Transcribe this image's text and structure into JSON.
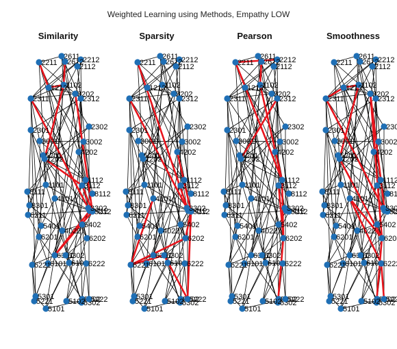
{
  "title": "Weighted Learning using Methods, Empathy LOW",
  "colors": {
    "node": "#1f6fb5",
    "edge": "#000000",
    "highlight": "#e8141c"
  },
  "panels": [
    {
      "title": "Similarity",
      "highlight": [
        [
          "2612",
          "1102"
        ],
        [
          "1102",
          "1202"
        ],
        [
          "1202",
          "3112"
        ],
        [
          "3112",
          "5212"
        ],
        [
          "1102",
          "1212"
        ],
        [
          "1212",
          "2211"
        ],
        [
          "2311",
          "2412"
        ],
        [
          "5212",
          "6301"
        ],
        [
          "6301",
          "2412"
        ],
        [
          "5212",
          "3202"
        ]
      ]
    },
    {
      "title": "Sparsity",
      "highlight": [
        [
          "2211",
          "2412"
        ],
        [
          "2412",
          "2311"
        ],
        [
          "4202",
          "5212"
        ],
        [
          "5212",
          "6202"
        ],
        [
          "6202",
          "6221"
        ],
        [
          "6221",
          "6302"
        ],
        [
          "6302",
          "5222"
        ],
        [
          "5222",
          "5212"
        ],
        [
          "6221",
          "4101"
        ]
      ]
    },
    {
      "title": "Pearson",
      "highlight": [
        [
          "2612",
          "1102"
        ],
        [
          "1102",
          "1112"
        ],
        [
          "2212",
          "2211"
        ],
        [
          "1112",
          "2211"
        ],
        [
          "1202",
          "2312"
        ],
        [
          "1112",
          "6202"
        ],
        [
          "6202",
          "5302"
        ],
        [
          "5302",
          "5202"
        ],
        [
          "3112",
          "6202"
        ]
      ]
    },
    {
      "title": "Smoothness",
      "highlight": [
        [
          "1102",
          "1212"
        ],
        [
          "1212",
          "2311"
        ],
        [
          "2311",
          "2412"
        ],
        [
          "2412",
          "3202"
        ],
        [
          "3202",
          "6202"
        ],
        [
          "1102",
          "1202"
        ],
        [
          "1202",
          "6202"
        ],
        [
          "6202",
          "4101"
        ],
        [
          "4101",
          "6222"
        ],
        [
          "6222",
          "5222"
        ],
        [
          "6202",
          "5302"
        ]
      ]
    }
  ],
  "nodes": [
    {
      "id": "2611",
      "label": "2611"
    },
    {
      "id": "2212",
      "label": "2212"
    },
    {
      "id": "2211",
      "label": "2211"
    },
    {
      "id": "2612",
      "label": "2612"
    },
    {
      "id": "2112",
      "label": "2112"
    },
    {
      "id": "1102",
      "label": "1102"
    },
    {
      "id": "1212",
      "label": "1212"
    },
    {
      "id": "3202",
      "label": "3202"
    },
    {
      "id": "2311",
      "label": "2311"
    },
    {
      "id": "2312",
      "label": "2312"
    },
    {
      "id": "2301",
      "label": "2301"
    },
    {
      "id": "2302",
      "label": "2302"
    },
    {
      "id": "3001",
      "label": "3001"
    },
    {
      "id": "3002",
      "label": "3002"
    },
    {
      "id": "4202",
      "label": "4202"
    },
    {
      "id": "5201",
      "label": "5201"
    },
    {
      "id": "1202",
      "label": "1202"
    },
    {
      "id": "1112",
      "label": "1112"
    },
    {
      "id": "1101",
      "label": "1101"
    },
    {
      "id": "3112",
      "label": "3112"
    },
    {
      "id": "8112",
      "label": "8112"
    },
    {
      "id": "8111",
      "label": "8111"
    },
    {
      "id": "8301",
      "label": "8301"
    },
    {
      "id": "6211",
      "label": "6211"
    },
    {
      "id": "2412",
      "label": "2412"
    },
    {
      "id": "5212",
      "label": "5212"
    },
    {
      "id": "3302",
      "label": "3302"
    },
    {
      "id": "4101",
      "label": "4101"
    },
    {
      "id": "5402",
      "label": "5402"
    },
    {
      "id": "5401",
      "label": "5401"
    },
    {
      "id": "4022",
      "label": "4022"
    },
    {
      "id": "6201",
      "label": "6201"
    },
    {
      "id": "6202",
      "label": "6202"
    },
    {
      "id": "6301",
      "label": "6301"
    },
    {
      "id": "6302",
      "label": "6302"
    },
    {
      "id": "6101",
      "label": "6101"
    },
    {
      "id": "6102",
      "label": "6102"
    },
    {
      "id": "6221",
      "label": "6221"
    },
    {
      "id": "6222",
      "label": "6222"
    },
    {
      "id": "5301",
      "label": "5301"
    },
    {
      "id": "5202",
      "label": "5202"
    },
    {
      "id": "5101",
      "label": "5101"
    },
    {
      "id": "5302",
      "label": "5302"
    },
    {
      "id": "5102",
      "label": "5102"
    },
    {
      "id": "5222",
      "label": "5222"
    },
    {
      "id": "5221",
      "label": "5221"
    }
  ],
  "edges": [
    [
      "2611",
      "2211"
    ],
    [
      "2611",
      "1102"
    ],
    [
      "2611",
      "2312"
    ],
    [
      "2611",
      "5212"
    ],
    [
      "2212",
      "1212"
    ],
    [
      "2212",
      "2311"
    ],
    [
      "2212",
      "3112"
    ],
    [
      "2212",
      "6301"
    ],
    [
      "2211",
      "2312"
    ],
    [
      "2211",
      "4202"
    ],
    [
      "2211",
      "1101"
    ],
    [
      "2211",
      "6202"
    ],
    [
      "2612",
      "2311"
    ],
    [
      "2612",
      "3302"
    ],
    [
      "2612",
      "6221"
    ],
    [
      "2112",
      "2312"
    ],
    [
      "2112",
      "3001"
    ],
    [
      "2112",
      "5212"
    ],
    [
      "1102",
      "2311"
    ],
    [
      "1102",
      "2302"
    ],
    [
      "1102",
      "4101"
    ],
    [
      "1102",
      "6101"
    ],
    [
      "1212",
      "3202"
    ],
    [
      "1212",
      "3002"
    ],
    [
      "1212",
      "5402"
    ],
    [
      "1212",
      "6102"
    ],
    [
      "3202",
      "2311"
    ],
    [
      "3202",
      "1202"
    ],
    [
      "3202",
      "8301"
    ],
    [
      "2311",
      "3001"
    ],
    [
      "2311",
      "1112"
    ],
    [
      "2311",
      "6201"
    ],
    [
      "2311",
      "5301"
    ],
    [
      "2312",
      "2301"
    ],
    [
      "2312",
      "4202"
    ],
    [
      "2312",
      "3112"
    ],
    [
      "2312",
      "5101"
    ],
    [
      "2301",
      "5201"
    ],
    [
      "2301",
      "1101"
    ],
    [
      "2301",
      "6211"
    ],
    [
      "2302",
      "1202"
    ],
    [
      "2302",
      "8111"
    ],
    [
      "2302",
      "5222"
    ],
    [
      "3001",
      "3002"
    ],
    [
      "3001",
      "1112"
    ],
    [
      "3001",
      "5401"
    ],
    [
      "3002",
      "4202"
    ],
    [
      "3002",
      "8112"
    ],
    [
      "3002",
      "6302"
    ],
    [
      "4202",
      "1112"
    ],
    [
      "4202",
      "4022"
    ],
    [
      "4202",
      "5202"
    ],
    [
      "5201",
      "1101"
    ],
    [
      "5201",
      "8301"
    ],
    [
      "5201",
      "4101"
    ],
    [
      "1202",
      "1112"
    ],
    [
      "1202",
      "5212"
    ],
    [
      "1202",
      "6202"
    ],
    [
      "1112",
      "3112"
    ],
    [
      "1112",
      "6221"
    ],
    [
      "1112",
      "5102"
    ],
    [
      "1101",
      "8111"
    ],
    [
      "1101",
      "2412"
    ],
    [
      "1101",
      "5302"
    ],
    [
      "3112",
      "8112"
    ],
    [
      "3112",
      "3302"
    ],
    [
      "3112",
      "6301"
    ],
    [
      "8111",
      "8301"
    ],
    [
      "8111",
      "5401"
    ],
    [
      "8301",
      "6211"
    ],
    [
      "8301",
      "4022"
    ],
    [
      "6211",
      "2412"
    ],
    [
      "6211",
      "6201"
    ],
    [
      "2412",
      "5212"
    ],
    [
      "2412",
      "5402"
    ],
    [
      "2412",
      "6302"
    ],
    [
      "5212",
      "3302"
    ],
    [
      "5212",
      "4101"
    ],
    [
      "5212",
      "5101"
    ],
    [
      "4101",
      "5401"
    ],
    [
      "4101",
      "6102"
    ],
    [
      "5402",
      "4022"
    ],
    [
      "5402",
      "6202"
    ],
    [
      "5402",
      "5222"
    ],
    [
      "5401",
      "6201"
    ],
    [
      "5401",
      "6221"
    ],
    [
      "4022",
      "6301"
    ],
    [
      "4022",
      "5301"
    ],
    [
      "6201",
      "6101"
    ],
    [
      "6201",
      "5202"
    ],
    [
      "6202",
      "6302"
    ],
    [
      "6202",
      "5102"
    ],
    [
      "6301",
      "6302"
    ],
    [
      "6301",
      "6221"
    ],
    [
      "6302",
      "6102"
    ],
    [
      "6302",
      "5302"
    ],
    [
      "6101",
      "6222"
    ],
    [
      "6101",
      "5221"
    ],
    [
      "6102",
      "6222"
    ],
    [
      "6102",
      "5101"
    ],
    [
      "6221",
      "5301"
    ],
    [
      "6221",
      "5221"
    ],
    [
      "6222",
      "5202"
    ],
    [
      "6222",
      "5102"
    ],
    [
      "5301",
      "5101"
    ],
    [
      "5202",
      "5302"
    ],
    [
      "5101",
      "5222"
    ],
    [
      "5302",
      "5102"
    ]
  ]
}
